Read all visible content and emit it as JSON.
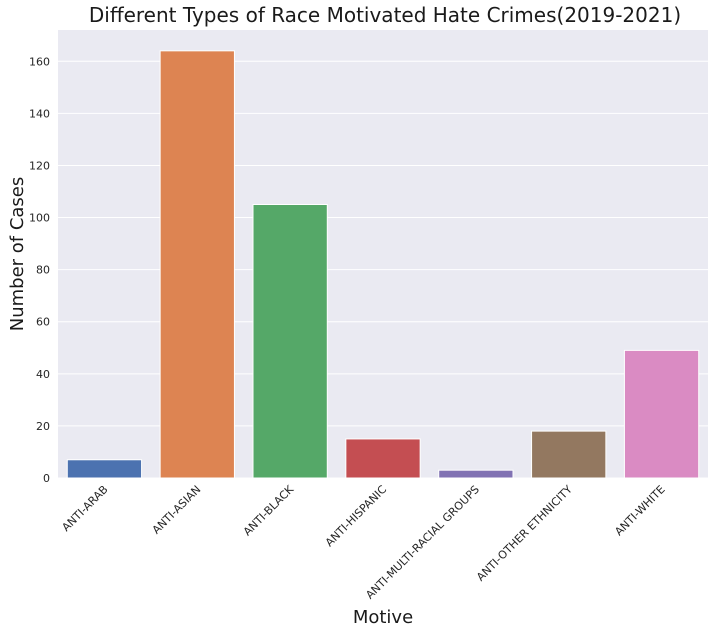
{
  "chart_data": {
    "type": "bar",
    "title": "Different Types of Race Motivated Hate Crimes(2019-2021)",
    "xlabel": "Motive",
    "ylabel": "Number of Cases",
    "categories": [
      "ANTI-ARAB",
      "ANTI-ASIAN",
      "ANTI-BLACK",
      "ANTI-HISPANIC",
      "ANTI-MULTI-RACIAL GROUPS",
      "ANTI-OTHER ETHNICITY",
      "ANTI-WHITE"
    ],
    "values": [
      7,
      164,
      105,
      15,
      3,
      18,
      49
    ],
    "colors": [
      "#4c72b0",
      "#dd8452",
      "#55a868",
      "#c44e52",
      "#8172b3",
      "#937860",
      "#da8bc3"
    ],
    "ylim": [
      0,
      172
    ],
    "yticks": [
      0,
      20,
      40,
      60,
      80,
      100,
      120,
      140,
      160
    ],
    "grid": true,
    "background": "#eaeaf2"
  }
}
